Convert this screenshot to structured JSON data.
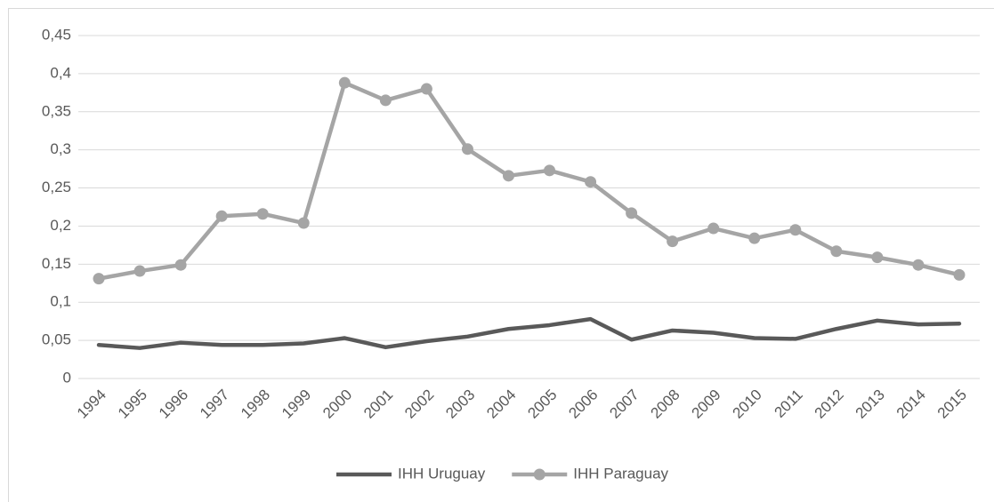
{
  "chart_data": {
    "type": "line",
    "categories": [
      "1994",
      "1995",
      "1996",
      "1997",
      "1998",
      "1999",
      "2000",
      "2001",
      "2002",
      "2003",
      "2004",
      "2005",
      "2006",
      "2007",
      "2008",
      "2009",
      "2010",
      "2011",
      "2012",
      "2013",
      "2014",
      "2015"
    ],
    "series": [
      {
        "name": "IHH Uruguay",
        "color": "#595959",
        "marker": false,
        "values": [
          0.044,
          0.04,
          0.047,
          0.044,
          0.044,
          0.046,
          0.053,
          0.041,
          0.049,
          0.055,
          0.065,
          0.07,
          0.078,
          0.051,
          0.063,
          0.06,
          0.053,
          0.052,
          0.065,
          0.076,
          0.071,
          0.072
        ]
      },
      {
        "name": "IHH Paraguay",
        "color": "#a5a5a5",
        "marker": true,
        "values": [
          0.131,
          0.141,
          0.149,
          0.213,
          0.216,
          0.204,
          0.388,
          0.365,
          0.38,
          0.301,
          0.266,
          0.273,
          0.258,
          0.217,
          0.18,
          0.197,
          0.184,
          0.195,
          0.167,
          0.159,
          0.149,
          0.136
        ]
      }
    ],
    "ylim": [
      0,
      0.45
    ],
    "yticks": [
      0,
      {
        "value": 0.05,
        "label": "0,05"
      },
      {
        "value": 0.1,
        "label": "0,1"
      },
      {
        "value": 0.15,
        "label": "0,15"
      },
      {
        "value": 0.2,
        "label": "0,2"
      },
      {
        "value": 0.25,
        "label": "0,25"
      },
      {
        "value": 0.3,
        "label": "0,3"
      },
      {
        "value": 0.35,
        "label": "0,35"
      },
      {
        "value": 0.4,
        "label": "0,4"
      },
      {
        "value": 0.45,
        "label": "0,45"
      }
    ],
    "grid": true,
    "legend": "bottom"
  }
}
